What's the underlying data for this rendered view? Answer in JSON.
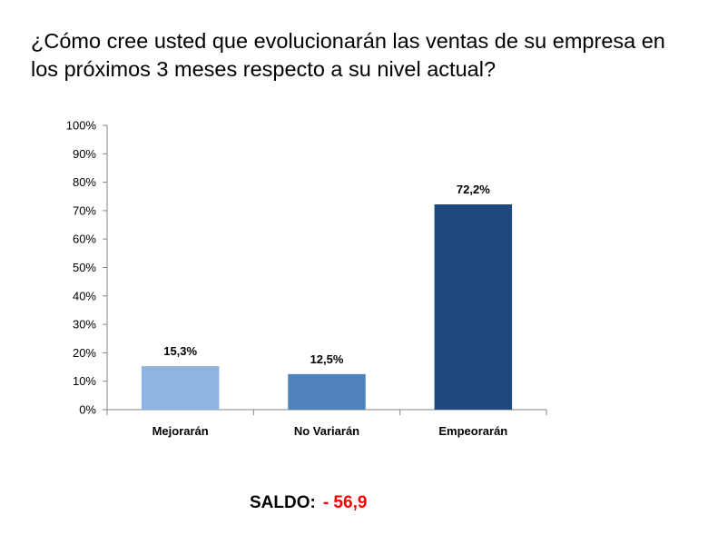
{
  "chart_data": {
    "type": "bar",
    "title": "¿Cómo cree usted que evolucionarán las ventas de su empresa en los próximos 3 meses respecto a su nivel actual?",
    "xlabel": "",
    "ylabel": "",
    "categories": [
      "Mejorarán",
      "No Variarán",
      "Empeorarán"
    ],
    "values": [
      15.3,
      12.5,
      72.2
    ],
    "data_labels": [
      "15,3%",
      "12,5%",
      "72,2%"
    ],
    "bar_colors": [
      "#8EB4E3",
      "#4F81BD",
      "#1F497D"
    ],
    "ylim": [
      0,
      100
    ],
    "yticks": [
      0,
      10,
      20,
      30,
      40,
      50,
      60,
      70,
      80,
      90,
      100
    ],
    "ytick_labels": [
      "0%",
      "10%",
      "20%",
      "30%",
      "40%",
      "50%",
      "60%",
      "70%",
      "80%",
      "90%",
      "100%"
    ],
    "grid": false,
    "legend": "none"
  },
  "saldo": {
    "label": "SALDO:",
    "value": "- 56,9",
    "value_color": "#FF0000"
  }
}
